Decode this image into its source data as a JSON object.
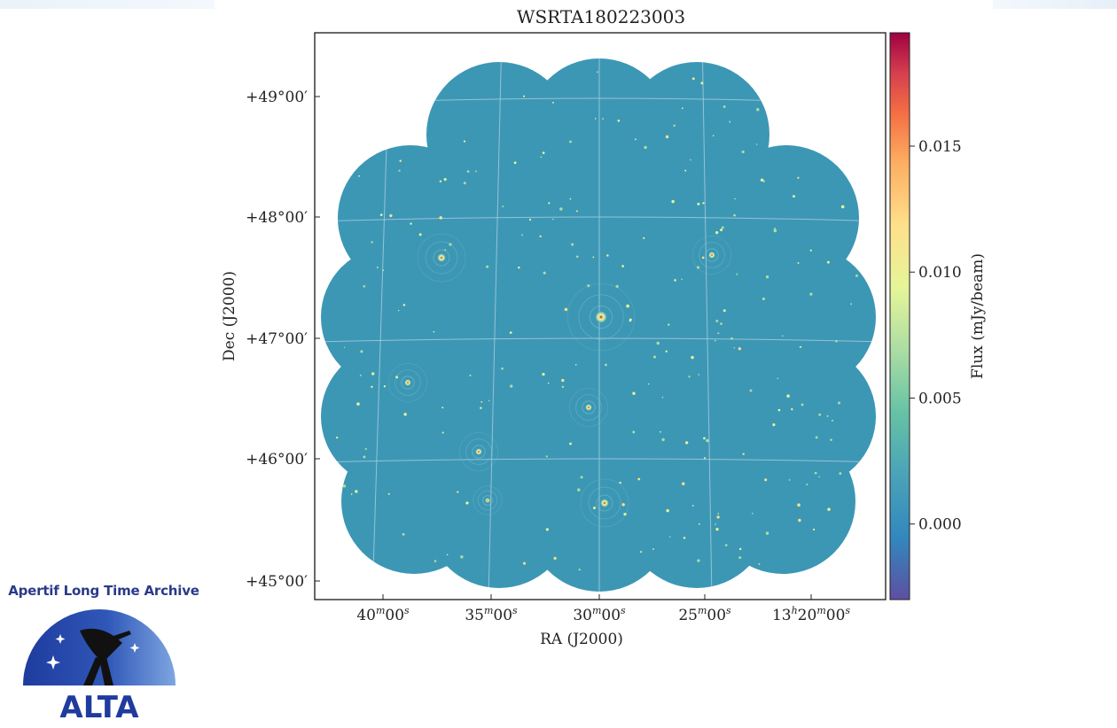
{
  "chart_data": {
    "type": "heatmap",
    "title": "WSRTA180223003",
    "xlabel": "RA (J2000)",
    "ylabel": "Dec (J2000)",
    "x_tick_labels": [
      {
        "main": "40",
        "sup": "m",
        "rest": "00",
        "sup2": "s"
      },
      {
        "main": "35",
        "sup": "m",
        "rest": "00",
        "sup2": "s"
      },
      {
        "main": "30",
        "sup": "m",
        "rest": "00",
        "sup2": "s"
      },
      {
        "main": "25",
        "sup": "m",
        "rest": "00",
        "sup2": "s"
      },
      {
        "main": "13",
        "sup": "h",
        "rest": "20",
        "sup2": "m",
        "tail": "00",
        "sup3": "s"
      }
    ],
    "y_ticks": [
      "+45°00′",
      "+46°00′",
      "+47°00′",
      "+48°00′",
      "+49°00′"
    ],
    "colorbar": {
      "label": "Flux (mJy/beam)",
      "range": [
        -0.003,
        0.0195
      ],
      "ticks": [
        0.0,
        0.005,
        0.01,
        0.015
      ],
      "tick_labels": [
        "0.000",
        "0.005",
        "0.010",
        "0.015"
      ],
      "colormap": "Spectral_r",
      "colors": [
        "#5e4fa2",
        "#3288bd",
        "#66c2a5",
        "#abdda4",
        "#e6f598",
        "#fee08b",
        "#fdae61",
        "#f46d43",
        "#d53e4f",
        "#9e0142"
      ]
    },
    "background_color": "#3c97b5",
    "grid": true
  },
  "logo": {
    "caption": "Apertif Long Time Archive",
    "text": "ALTA"
  }
}
